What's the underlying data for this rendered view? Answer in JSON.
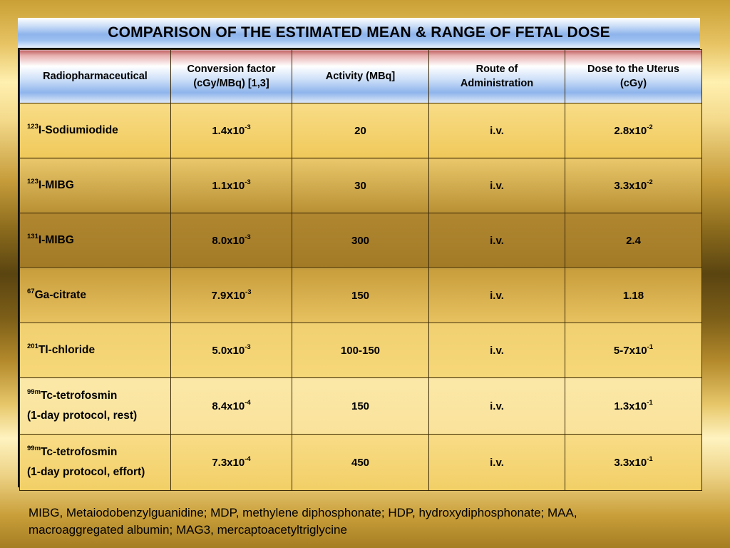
{
  "title": "COMPARISON OF THE ESTIMATED MEAN & RANGE OF FETAL DOSE",
  "headers": {
    "col1": "Radiopharmaceutical",
    "col2_line1": "Conversion factor",
    "col2_line2": "(cGy/MBq) [1,3]",
    "col3": "Activity (MBq]",
    "col4_line1": "Route of",
    "col4_line2": "Administration",
    "col5_line1": "Dose to the Uterus",
    "col5_line2": "(cGy)"
  },
  "rows": [
    {
      "iso": "123",
      "name": "I-Sodiumiodide",
      "name2": "",
      "cf_base": "1.4x10",
      "cf_exp": "-3",
      "activity": "20",
      "route": "i.v.",
      "dose_base": "2.8x10",
      "dose_exp": "-2"
    },
    {
      "iso": "123",
      "name": "I-MIBG",
      "name2": "",
      "cf_base": "1.1x10",
      "cf_exp": "-3",
      "activity": "30",
      "route": "i.v.",
      "dose_base": "3.3x10",
      "dose_exp": "-2"
    },
    {
      "iso": "131",
      "name": "I-MIBG",
      "name2": "",
      "cf_base": "8.0x10",
      "cf_exp": "-3",
      "activity": "300",
      "route": "i.v.",
      "dose_base": "2.4",
      "dose_exp": ""
    },
    {
      "iso": "67",
      "name": "Ga-citrate",
      "name2": "",
      "cf_base": "7.9X10",
      "cf_exp": "-3",
      "activity": "150",
      "route": "i.v.",
      "dose_base": "1.18",
      "dose_exp": ""
    },
    {
      "iso": "201",
      "name": "Tl-chloride",
      "name2": "",
      "cf_base": "5.0x10",
      "cf_exp": "-3",
      "activity": "100-150",
      "route": "i.v.",
      "dose_base": "5-7x10",
      "dose_exp": "-1"
    },
    {
      "iso": "99m",
      "name": "Tc-tetrofosmin",
      "name2": "(1-day protocol, rest)",
      "cf_base": "8.4x10",
      "cf_exp": "-4",
      "activity": "150",
      "route": "i.v.",
      "dose_base": "1.3x10",
      "dose_exp": "-1"
    },
    {
      "iso": "99m",
      "name": "Tc-tetrofosmin",
      "name2": "(1-day protocol, effort)",
      "cf_base": "7.3x10",
      "cf_exp": "-4",
      "activity": "450",
      "route": "i.v.",
      "dose_base": "3.3x10",
      "dose_exp": "-1"
    }
  ],
  "footnote": "MIBG, Metaiodobenzylguanidine; MDP, methylene diphosphonate; HDP, hydroxydiphosphonate; MAA, macroaggregated albumin; MAG3, mercaptoacetyltriglycine"
}
